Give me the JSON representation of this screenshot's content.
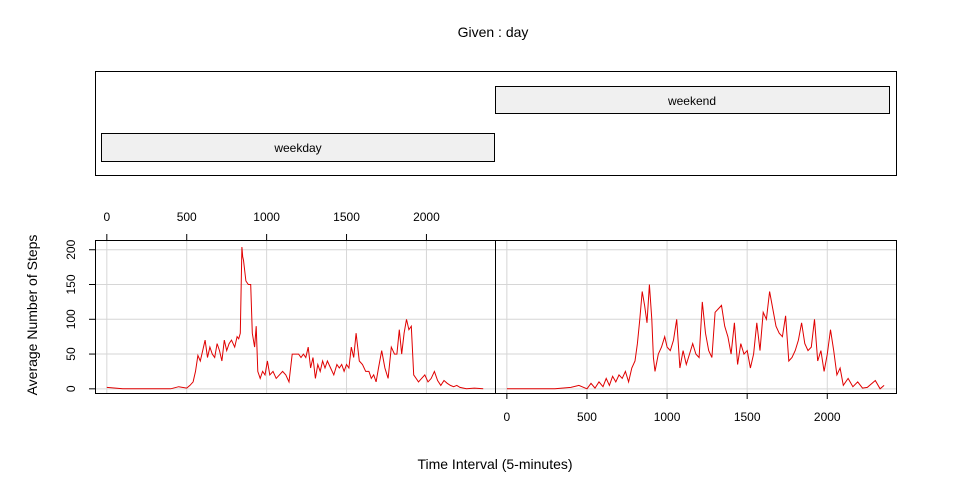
{
  "chart_data": {
    "type": "line",
    "title": "Given : day",
    "xlabel": "Time Interval (5-minutes)",
    "ylabel": "Average Number of Steps",
    "xlim": [
      -74,
      2429
    ],
    "ylim": [
      -6,
      214
    ],
    "x_ticks": [
      0,
      500,
      1000,
      1500,
      2000
    ],
    "y_ticks": [
      0,
      50,
      100,
      150,
      200
    ],
    "grid": true,
    "line_color": "#e00000",
    "strip_fill": "#f0f0f0",
    "conditioning": {
      "variable": "day",
      "levels": [
        "weekday",
        "weekend"
      ]
    },
    "series": [
      {
        "name": "weekday",
        "x": [
          0,
          100,
          200,
          300,
          400,
          450,
          500,
          520,
          540,
          555,
          570,
          585,
          600,
          615,
          630,
          645,
          660,
          675,
          690,
          705,
          720,
          735,
          750,
          765,
          780,
          800,
          815,
          825,
          835,
          845,
          850,
          855,
          870,
          885,
          900,
          910,
          925,
          935,
          945,
          960,
          975,
          990,
          1005,
          1020,
          1040,
          1060,
          1080,
          1100,
          1120,
          1140,
          1160,
          1180,
          1200,
          1215,
          1230,
          1245,
          1260,
          1275,
          1290,
          1305,
          1320,
          1335,
          1350,
          1365,
          1380,
          1400,
          1420,
          1440,
          1455,
          1470,
          1485,
          1500,
          1515,
          1530,
          1545,
          1560,
          1580,
          1600,
          1620,
          1640,
          1655,
          1670,
          1685,
          1700,
          1720,
          1740,
          1760,
          1780,
          1800,
          1815,
          1830,
          1845,
          1860,
          1875,
          1890,
          1905,
          1920,
          1935,
          1950,
          1970,
          1990,
          2010,
          2030,
          2050,
          2070,
          2090,
          2110,
          2130,
          2150,
          2170,
          2190,
          2210,
          2250,
          2300,
          2355
        ],
        "y": [
          2,
          0,
          0,
          0,
          0,
          3,
          1,
          5,
          10,
          25,
          48,
          40,
          55,
          70,
          45,
          60,
          50,
          45,
          65,
          55,
          40,
          70,
          55,
          65,
          70,
          60,
          75,
          72,
          80,
          204,
          190,
          185,
          155,
          150,
          150,
          80,
          60,
          90,
          25,
          15,
          25,
          20,
          40,
          20,
          25,
          15,
          20,
          25,
          20,
          10,
          50,
          50,
          50,
          45,
          50,
          45,
          60,
          30,
          45,
          15,
          35,
          25,
          40,
          30,
          40,
          30,
          20,
          35,
          30,
          35,
          25,
          35,
          30,
          60,
          45,
          80,
          40,
          35,
          25,
          25,
          15,
          20,
          10,
          30,
          55,
          30,
          15,
          60,
          50,
          50,
          85,
          50,
          80,
          100,
          85,
          90,
          20,
          15,
          10,
          15,
          20,
          10,
          15,
          25,
          12,
          5,
          12,
          8,
          5,
          3,
          5,
          2,
          0,
          1,
          0
        ]
      },
      {
        "name": "weekend",
        "x": [
          0,
          100,
          200,
          300,
          400,
          450,
          500,
          525,
          550,
          575,
          600,
          620,
          640,
          660,
          680,
          700,
          720,
          740,
          760,
          780,
          800,
          815,
          830,
          845,
          860,
          875,
          890,
          905,
          915,
          925,
          945,
          965,
          985,
          1000,
          1020,
          1040,
          1060,
          1080,
          1100,
          1120,
          1140,
          1160,
          1180,
          1200,
          1220,
          1240,
          1260,
          1280,
          1300,
          1320,
          1340,
          1360,
          1380,
          1400,
          1420,
          1440,
          1460,
          1480,
          1500,
          1520,
          1540,
          1560,
          1580,
          1600,
          1620,
          1640,
          1660,
          1680,
          1700,
          1720,
          1740,
          1760,
          1780,
          1800,
          1820,
          1840,
          1860,
          1880,
          1900,
          1920,
          1940,
          1960,
          1980,
          2000,
          2020,
          2040,
          2060,
          2080,
          2100,
          2130,
          2160,
          2190,
          2220,
          2250,
          2300,
          2330,
          2355
        ],
        "y": [
          0,
          0,
          0,
          0,
          2,
          5,
          0,
          8,
          1,
          10,
          3,
          15,
          5,
          18,
          10,
          20,
          15,
          25,
          10,
          30,
          40,
          65,
          100,
          140,
          120,
          95,
          150,
          100,
          45,
          25,
          50,
          60,
          75,
          60,
          55,
          70,
          100,
          30,
          55,
          35,
          50,
          65,
          50,
          45,
          125,
          80,
          55,
          45,
          110,
          115,
          120,
          90,
          75,
          50,
          95,
          35,
          65,
          50,
          55,
          30,
          50,
          95,
          55,
          110,
          100,
          140,
          115,
          90,
          80,
          75,
          105,
          40,
          45,
          55,
          70,
          95,
          65,
          55,
          60,
          100,
          40,
          55,
          25,
          50,
          85,
          55,
          20,
          30,
          5,
          15,
          3,
          10,
          1,
          2,
          12,
          0,
          5
        ]
      }
    ]
  }
}
